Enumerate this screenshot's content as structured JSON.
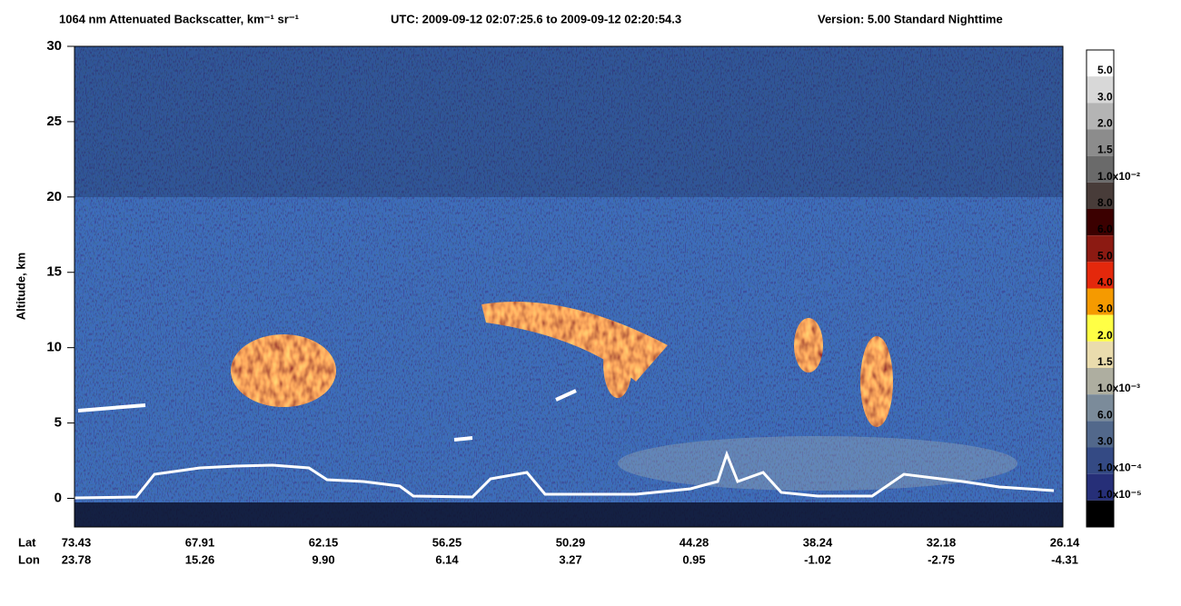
{
  "chart_data": {
    "type": "heatmap",
    "title": "1064 nm Attenuated Backscatter, km⁻¹ sr⁻¹",
    "utc": "UTC:  2009-09-12 02:07:25.6  to  2009-09-12 02:20:54.3",
    "version": "Version: 5.00  Standard  Nighttime",
    "ylabel": "Altitude, km",
    "ylim": [
      -1.9,
      30
    ],
    "yticks": [
      0,
      5,
      10,
      15,
      20,
      25,
      30
    ],
    "x_rows": [
      {
        "name": "Lat",
        "labels": [
          "73.43",
          "67.91",
          "62.15",
          "56.25",
          "50.29",
          "44.28",
          "38.24",
          "32.18",
          "26.14"
        ]
      },
      {
        "name": "Lon",
        "labels": [
          "23.78",
          "15.26",
          "9.90",
          "6.14",
          "3.27",
          "0.95",
          "-1.02",
          "-2.75",
          "-4.31"
        ]
      }
    ],
    "colorbar": {
      "colors": [
        "#ffffff",
        "#d8d8d8",
        "#b4b4b4",
        "#8c8c8c",
        "#6a6a6a",
        "#483c39",
        "#3b0000",
        "#8c1a12",
        "#e4280c",
        "#f59a00",
        "#ffff45",
        "#eadcad",
        "#aeaea0",
        "#7b8b9a",
        "#52688b",
        "#344a84",
        "#262f78",
        "#000000"
      ],
      "labels": [
        "5.0",
        "3.0",
        "2.0",
        "1.5",
        "1.0x10⁻²",
        "8.0",
        "6.0",
        "5.0",
        "4.0",
        "3.0",
        "2.0",
        "1.5",
        "1.0x10⁻³",
        "6.0",
        "3.0",
        "1.0x10⁻⁴",
        "1.0x10⁻⁵"
      ]
    }
  }
}
